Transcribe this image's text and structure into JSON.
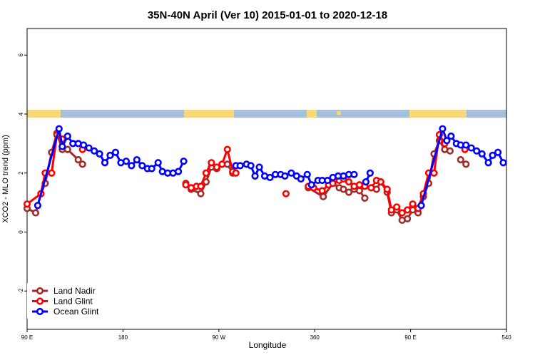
{
  "chart_data": {
    "type": "line",
    "title": "35N-40N April (Ver 10)   2015-01-01 to 2020-12-18",
    "x_label": "Longitude",
    "y_label": "XCO2 - MLO trend (ppm)",
    "xlim": [
      90,
      540
    ],
    "ylim": [
      -3.3,
      6.9
    ],
    "xticks": [
      {
        "value": 90,
        "label": "90 E"
      },
      180,
      {
        "value": 270,
        "label": "90 W"
      },
      360,
      {
        "value": 450,
        "label": "90 E"
      },
      540
    ],
    "yticks": [
      -2,
      0,
      2,
      4,
      6
    ],
    "legend": "bottom-left",
    "series": [
      {
        "name": "Land Nadir",
        "color": "#a52a2a",
        "x": [
          90,
          98,
          103,
          107,
          113,
          118,
          123,
          128,
          138,
          142,
          null,
          239,
          244,
          253,
          258,
          263,
          268,
          273,
          278,
          283,
          null,
          354,
          368,
          377,
          383,
          387,
          392,
          397,
          402,
          407,
          null,
          418,
          422,
          428,
          432,
          437,
          442,
          447,
          452,
          457,
          462,
          467,
          472,
          477,
          482,
          487,
          null,
          497,
          502
        ],
        "values": [
          0.8,
          0.65,
          1.3,
          1.65,
          2.7,
          3.35,
          2.8,
          2.8,
          2.45,
          2.3,
          null,
          1.65,
          1.45,
          1.3,
          1.7,
          2.2,
          2.15,
          2.3,
          2.3,
          2.0,
          null,
          1.5,
          1.2,
          1.65,
          1.5,
          1.45,
          1.35,
          1.45,
          1.4,
          1.15,
          null,
          1.45,
          1.7,
          1.35,
          0.65,
          0.75,
          0.4,
          0.45,
          0.75,
          0.65,
          1.2,
          1.65,
          2.65,
          3.1,
          2.8,
          2.75,
          null,
          2.45,
          2.3
        ]
      },
      {
        "name": "Land Glint",
        "color": "#ff0000",
        "x": [
          90,
          103,
          107,
          113,
          118,
          123,
          null,
          142,
          null,
          239,
          244,
          249,
          253,
          258,
          263,
          268,
          273,
          278,
          283,
          286,
          null,
          333,
          null,
          354,
          359,
          367,
          373,
          377,
          383,
          387,
          392,
          397,
          402,
          407,
          413,
          418,
          422,
          428,
          432,
          437,
          442,
          447,
          452,
          457,
          462,
          467,
          472,
          477,
          482,
          null,
          501
        ],
        "values": [
          0.95,
          1.3,
          2.0,
          2.0,
          3.3,
          3.15,
          null,
          2.8,
          null,
          1.6,
          1.5,
          1.55,
          1.55,
          2.0,
          2.35,
          2.2,
          2.3,
          2.8,
          2.05,
          2.0,
          null,
          1.3,
          null,
          1.55,
          1.5,
          1.4,
          1.6,
          1.65,
          1.75,
          1.8,
          1.7,
          1.55,
          1.6,
          1.55,
          1.5,
          1.75,
          1.7,
          1.45,
          0.75,
          0.85,
          0.65,
          0.75,
          0.95,
          0.8,
          1.3,
          2.0,
          2.0,
          3.3,
          3.0,
          null,
          2.8
        ]
      },
      {
        "name": "Ocean Glint",
        "color": "#0000ff",
        "x": [
          100,
          120,
          123,
          128,
          133,
          138,
          143,
          148,
          153,
          158,
          163,
          168,
          173,
          178,
          183,
          188,
          193,
          198,
          203,
          207,
          213,
          217,
          222,
          227,
          232,
          237,
          null,
          286,
          290,
          296,
          300,
          304,
          308,
          313,
          318,
          323,
          328,
          332,
          338,
          343,
          347,
          353,
          357,
          363,
          367,
          372,
          377,
          382,
          387,
          392,
          397,
          null,
          408,
          412,
          null,
          460,
          480,
          484,
          488,
          493,
          497,
          502,
          507,
          512,
          517,
          523,
          527,
          532,
          537
        ],
        "values": [
          0.9,
          3.5,
          2.9,
          3.25,
          3.0,
          3.0,
          2.95,
          2.85,
          2.75,
          2.65,
          2.35,
          2.6,
          2.7,
          2.35,
          2.4,
          2.25,
          2.45,
          2.25,
          2.15,
          2.15,
          2.35,
          2.05,
          2.0,
          2.0,
          2.05,
          2.4,
          null,
          2.25,
          2.25,
          2.3,
          2.25,
          1.9,
          2.2,
          1.9,
          1.85,
          1.95,
          1.95,
          1.9,
          2.0,
          1.9,
          1.8,
          1.95,
          1.6,
          1.75,
          1.75,
          1.75,
          1.85,
          1.9,
          1.9,
          1.95,
          1.95,
          null,
          1.7,
          2.0,
          null,
          0.9,
          3.5,
          3.1,
          3.25,
          3.0,
          2.95,
          2.95,
          2.85,
          2.75,
          2.65,
          2.35,
          2.6,
          2.7,
          2.35
        ]
      }
    ]
  }
}
